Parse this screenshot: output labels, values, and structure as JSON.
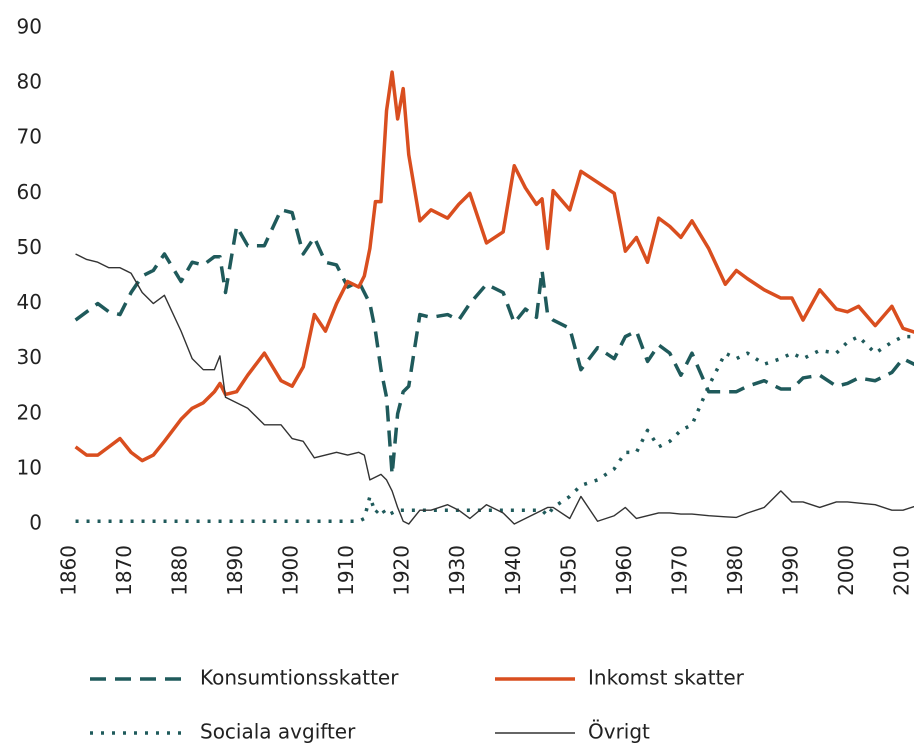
{
  "chart_data": {
    "type": "line",
    "x": [
      1861,
      1863,
      1865,
      1867,
      1869,
      1871,
      1873,
      1875,
      1877,
      1880,
      1882,
      1884,
      1886,
      1887,
      1888,
      1890,
      1892,
      1895,
      1898,
      1900,
      1902,
      1904,
      1906,
      1908,
      1910,
      1912,
      1913,
      1914,
      1915,
      1916,
      1917,
      1918,
      1919,
      1920,
      1921,
      1923,
      1925,
      1928,
      1930,
      1932,
      1935,
      1938,
      1940,
      1942,
      1944,
      1945,
      1946,
      1947,
      1950,
      1952,
      1955,
      1958,
      1960,
      1962,
      1964,
      1966,
      1968,
      1970,
      1972,
      1975,
      1978,
      1980,
      1982,
      1985,
      1988,
      1990,
      1992,
      1995,
      1998,
      2000,
      2002,
      2005,
      2008,
      2010,
      2013
    ],
    "series": [
      {
        "name": "Konsumtionsskatter",
        "color": "#1f5a5b",
        "style": "dashed",
        "values": [
          37,
          38.5,
          40,
          38.5,
          38,
          42,
          45,
          46,
          49,
          44,
          47.5,
          47,
          48.5,
          48.5,
          42,
          54,
          50.5,
          50.5,
          57,
          56.5,
          49,
          52,
          47.5,
          47,
          43,
          44,
          42,
          40,
          35,
          28,
          23,
          9,
          20,
          24,
          25,
          38,
          37.5,
          38,
          37,
          40,
          43.5,
          42,
          36.5,
          39,
          37.5,
          46,
          38,
          37,
          35.5,
          28,
          32,
          30,
          34,
          35,
          29.5,
          32.5,
          31,
          27,
          31,
          24,
          24,
          24,
          25,
          26,
          24.5,
          24.5,
          26.5,
          27,
          25,
          25.5,
          26.5,
          26,
          27.5,
          30,
          28.5
        ]
      },
      {
        "name": "Inkomst skatter",
        "color": "#d94e1f",
        "style": "solid",
        "values": [
          14,
          12.5,
          12.5,
          14,
          15.5,
          13,
          11.5,
          12.5,
          15,
          19,
          21,
          22,
          24,
          25.5,
          23.5,
          24,
          27,
          31,
          26,
          25,
          28.5,
          38,
          35,
          40,
          44,
          43,
          45,
          50,
          58.5,
          58.5,
          75,
          82,
          73.5,
          79,
          67,
          55,
          57,
          55.5,
          58,
          60,
          51,
          53,
          65,
          61,
          58,
          59,
          50,
          60.5,
          57,
          64,
          62,
          60,
          49.5,
          52,
          47.5,
          55.5,
          54,
          52,
          55,
          50,
          43.5,
          46,
          44.5,
          42.5,
          41,
          41,
          37,
          42.5,
          39,
          38.5,
          39.5,
          36,
          39.5,
          35.5,
          34.5
        ]
      },
      {
        "name": "Sociala avgifter",
        "color": "#1f5a5b",
        "style": "dotted",
        "values": [
          0.5,
          0.5,
          0.5,
          0.5,
          0.5,
          0.5,
          0.5,
          0.5,
          0.5,
          0.5,
          0.5,
          0.5,
          0.5,
          0.5,
          0.5,
          0.5,
          0.5,
          0.5,
          0.5,
          0.5,
          0.5,
          0.5,
          0.5,
          0.5,
          0.5,
          0.5,
          1,
          5,
          2,
          3,
          1.5,
          2,
          2.5,
          2.5,
          2.5,
          2.5,
          2.5,
          2.5,
          2.5,
          2.5,
          2.5,
          2.5,
          2.5,
          2.5,
          2.5,
          2.5,
          1.5,
          3,
          5,
          7,
          8,
          10,
          13,
          13,
          17,
          14,
          15,
          17,
          18,
          25,
          31,
          30,
          31,
          29,
          30,
          31,
          30,
          31.5,
          31,
          33,
          34,
          31,
          33,
          34,
          34
        ]
      },
      {
        "name": "Övrigt",
        "color": "#333333",
        "style": "thin",
        "values": [
          49,
          48,
          47.5,
          46.5,
          46.5,
          45.5,
          42,
          40,
          41.5,
          35,
          30,
          28,
          28,
          30.5,
          23,
          22,
          21,
          18,
          18,
          15.5,
          15,
          12,
          12.5,
          13,
          12.5,
          13,
          12.5,
          8,
          8.5,
          9,
          8,
          6,
          3,
          0.5,
          0,
          2.5,
          2.5,
          3.5,
          2.5,
          1,
          3.5,
          2,
          0,
          1,
          2,
          2.5,
          3,
          3,
          1,
          5,
          0.5,
          1.5,
          3,
          1,
          1.5,
          2,
          2,
          1.8,
          1.8,
          1.5,
          1.3,
          1.2,
          2,
          3,
          6,
          4,
          4,
          3,
          4,
          4,
          3.8,
          3.5,
          2.5,
          2.5,
          3.5
        ]
      }
    ],
    "xlim": [
      1860,
      2013
    ],
    "xticks": [
      1860,
      1870,
      1880,
      1890,
      1900,
      1910,
      1920,
      1930,
      1940,
      1950,
      1960,
      1970,
      1980,
      1990,
      2000,
      2010
    ],
    "ylim": [
      0,
      90
    ],
    "yticks": [
      0,
      10,
      20,
      30,
      40,
      50,
      60,
      70,
      80,
      90
    ],
    "grid": false
  }
}
